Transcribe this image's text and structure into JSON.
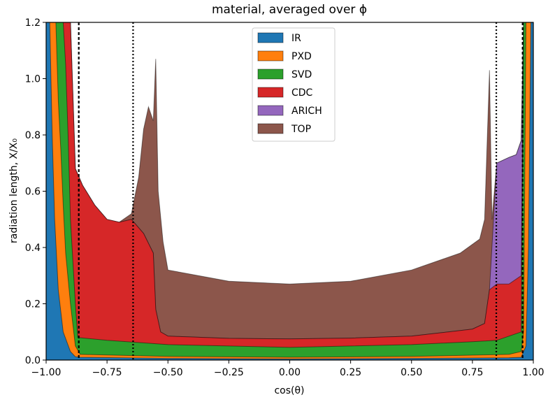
{
  "chart_data": {
    "type": "area",
    "title": "material, averaged over ϕ",
    "xlabel": "cos(θ)",
    "ylabel": "radiation length, X/X₀",
    "xlim": [
      -1.0,
      1.0
    ],
    "ylim": [
      0.0,
      1.2
    ],
    "grid": false,
    "legend_position": "top-center",
    "x_ticks": [
      -1.0,
      -0.75,
      -0.5,
      -0.25,
      0.0,
      0.25,
      0.5,
      0.75,
      1.0
    ],
    "x_tick_labels": [
      "−1.00",
      "−0.75",
      "−0.50",
      "−0.25",
      "0.00",
      "0.25",
      "0.50",
      "0.75",
      "1.00"
    ],
    "y_ticks": [
      0.0,
      0.2,
      0.4,
      0.6,
      0.8,
      1.0,
      1.2
    ],
    "y_tick_labels": [
      "0.0",
      "0.2",
      "0.4",
      "0.6",
      "0.8",
      "1.0",
      "1.2"
    ],
    "vertical_lines": [
      {
        "x": -0.866,
        "style": "dashed"
      },
      {
        "x": -0.643,
        "style": "dotted"
      },
      {
        "x": 0.848,
        "style": "dotted"
      },
      {
        "x": 0.956,
        "style": "dashed"
      }
    ],
    "series": [
      {
        "name": "IR",
        "color": "#1f77b4",
        "points": [
          [
            -1.0,
            1.2
          ],
          [
            -0.985,
            1.2
          ],
          [
            -0.975,
            0.8
          ],
          [
            -0.965,
            0.5
          ],
          [
            -0.95,
            0.25
          ],
          [
            -0.93,
            0.1
          ],
          [
            -0.9,
            0.03
          ],
          [
            -0.88,
            0.012
          ],
          [
            -0.86,
            0.01
          ],
          [
            -0.5,
            0.006
          ],
          [
            0.0,
            0.004
          ],
          [
            0.5,
            0.006
          ],
          [
            0.9,
            0.008
          ],
          [
            0.95,
            0.01
          ],
          [
            0.97,
            0.05
          ],
          [
            0.98,
            0.4
          ],
          [
            0.99,
            1.2
          ],
          [
            1.0,
            1.2
          ]
        ]
      },
      {
        "name": "PXD",
        "color": "#ff7f0e",
        "points": [
          [
            -1.0,
            1.2
          ],
          [
            -0.96,
            1.2
          ],
          [
            -0.95,
            0.92
          ],
          [
            -0.94,
            0.75
          ],
          [
            -0.93,
            0.55
          ],
          [
            -0.92,
            0.38
          ],
          [
            -0.9,
            0.2
          ],
          [
            -0.88,
            0.05
          ],
          [
            -0.86,
            0.02
          ],
          [
            -0.5,
            0.013
          ],
          [
            0.0,
            0.01
          ],
          [
            0.5,
            0.013
          ],
          [
            0.9,
            0.02
          ],
          [
            0.95,
            0.03
          ],
          [
            0.96,
            0.1
          ],
          [
            0.97,
            1.2
          ],
          [
            1.0,
            1.2
          ]
        ]
      },
      {
        "name": "SVD",
        "color": "#2ca02c",
        "points": [
          [
            -1.0,
            1.2
          ],
          [
            -0.93,
            1.2
          ],
          [
            -0.92,
            1.05
          ],
          [
            -0.91,
            0.8
          ],
          [
            -0.9,
            0.5
          ],
          [
            -0.88,
            0.2
          ],
          [
            -0.87,
            0.08
          ],
          [
            -0.75,
            0.07
          ],
          [
            -0.5,
            0.055
          ],
          [
            -0.25,
            0.05
          ],
          [
            0.0,
            0.045
          ],
          [
            0.25,
            0.05
          ],
          [
            0.5,
            0.055
          ],
          [
            0.75,
            0.065
          ],
          [
            0.85,
            0.07
          ],
          [
            0.95,
            0.1
          ],
          [
            0.96,
            1.2
          ],
          [
            1.0,
            1.2
          ]
        ]
      },
      {
        "name": "CDC",
        "color": "#d62728",
        "points": [
          [
            -1.0,
            1.2
          ],
          [
            -0.9,
            1.2
          ],
          [
            -0.88,
            0.68
          ],
          [
            -0.85,
            0.62
          ],
          [
            -0.8,
            0.55
          ],
          [
            -0.75,
            0.5
          ],
          [
            -0.7,
            0.49
          ],
          [
            -0.65,
            0.5
          ],
          [
            -0.6,
            0.45
          ],
          [
            -0.56,
            0.38
          ],
          [
            -0.55,
            0.18
          ],
          [
            -0.53,
            0.1
          ],
          [
            -0.5,
            0.085
          ],
          [
            -0.25,
            0.077
          ],
          [
            0.0,
            0.075
          ],
          [
            0.25,
            0.078
          ],
          [
            0.5,
            0.085
          ],
          [
            0.75,
            0.11
          ],
          [
            0.8,
            0.13
          ],
          [
            0.82,
            0.25
          ],
          [
            0.85,
            0.27
          ],
          [
            0.9,
            0.27
          ],
          [
            0.95,
            0.3
          ],
          [
            0.96,
            1.2
          ],
          [
            1.0,
            1.2
          ]
        ]
      },
      {
        "name": "ARICH",
        "color": "#9467bd",
        "points": [
          [
            -1.0,
            1.2
          ],
          [
            -0.9,
            1.2
          ],
          [
            -0.88,
            0.68
          ],
          [
            -0.85,
            0.62
          ],
          [
            -0.8,
            0.55
          ],
          [
            -0.75,
            0.5
          ],
          [
            -0.7,
            0.49
          ],
          [
            -0.65,
            0.5
          ],
          [
            -0.6,
            0.45
          ],
          [
            -0.56,
            0.38
          ],
          [
            -0.55,
            0.18
          ],
          [
            -0.53,
            0.1
          ],
          [
            -0.5,
            0.085
          ],
          [
            -0.25,
            0.077
          ],
          [
            0.0,
            0.075
          ],
          [
            0.25,
            0.078
          ],
          [
            0.5,
            0.085
          ],
          [
            0.75,
            0.11
          ],
          [
            0.8,
            0.13
          ],
          [
            0.82,
            0.25
          ],
          [
            0.85,
            0.7
          ],
          [
            0.9,
            0.72
          ],
          [
            0.93,
            0.73
          ],
          [
            0.95,
            0.78
          ],
          [
            0.96,
            1.2
          ],
          [
            1.0,
            1.2
          ]
        ]
      },
      {
        "name": "TOP",
        "color": "#8c564b",
        "points": [
          [
            -1.0,
            1.2
          ],
          [
            -0.9,
            1.2
          ],
          [
            -0.88,
            0.68
          ],
          [
            -0.85,
            0.62
          ],
          [
            -0.8,
            0.55
          ],
          [
            -0.75,
            0.5
          ],
          [
            -0.7,
            0.49
          ],
          [
            -0.65,
            0.52
          ],
          [
            -0.62,
            0.65
          ],
          [
            -0.6,
            0.82
          ],
          [
            -0.58,
            0.9
          ],
          [
            -0.56,
            0.85
          ],
          [
            -0.55,
            1.07
          ],
          [
            -0.54,
            0.6
          ],
          [
            -0.52,
            0.42
          ],
          [
            -0.5,
            0.32
          ],
          [
            -0.25,
            0.28
          ],
          [
            0.0,
            0.27
          ],
          [
            0.25,
            0.28
          ],
          [
            0.5,
            0.32
          ],
          [
            0.7,
            0.38
          ],
          [
            0.78,
            0.43
          ],
          [
            0.8,
            0.5
          ],
          [
            0.82,
            1.03
          ],
          [
            0.83,
            0.5
          ],
          [
            0.85,
            0.7
          ],
          [
            0.9,
            0.72
          ],
          [
            0.93,
            0.73
          ],
          [
            0.95,
            0.78
          ],
          [
            0.96,
            1.2
          ],
          [
            1.0,
            1.2
          ]
        ]
      }
    ]
  }
}
